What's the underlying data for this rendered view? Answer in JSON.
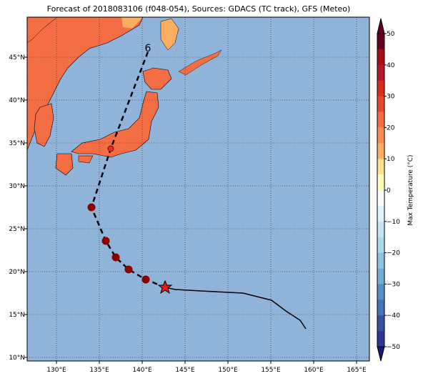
{
  "header": {
    "title": "Forecast of 2018083106 (f048-054), Sources: GDACS (TC track), GFS (Meteo)"
  },
  "map": {
    "lon_labels": [
      "130°E",
      "135°E",
      "140°E",
      "145°E",
      "150°E",
      "155°E",
      "160°E",
      "165°E"
    ],
    "lat_labels": [
      "10°N",
      "15°N",
      "20°N",
      "25°N",
      "30°N",
      "35°N",
      "40°N",
      "45°N"
    ],
    "track_label": "6"
  },
  "colorbar": {
    "label": "Max Temperature (°C)",
    "ticks": [
      "−50",
      "−40",
      "−30",
      "−20",
      "−10",
      "0",
      "10",
      "20",
      "30",
      "40",
      "50"
    ]
  }
}
